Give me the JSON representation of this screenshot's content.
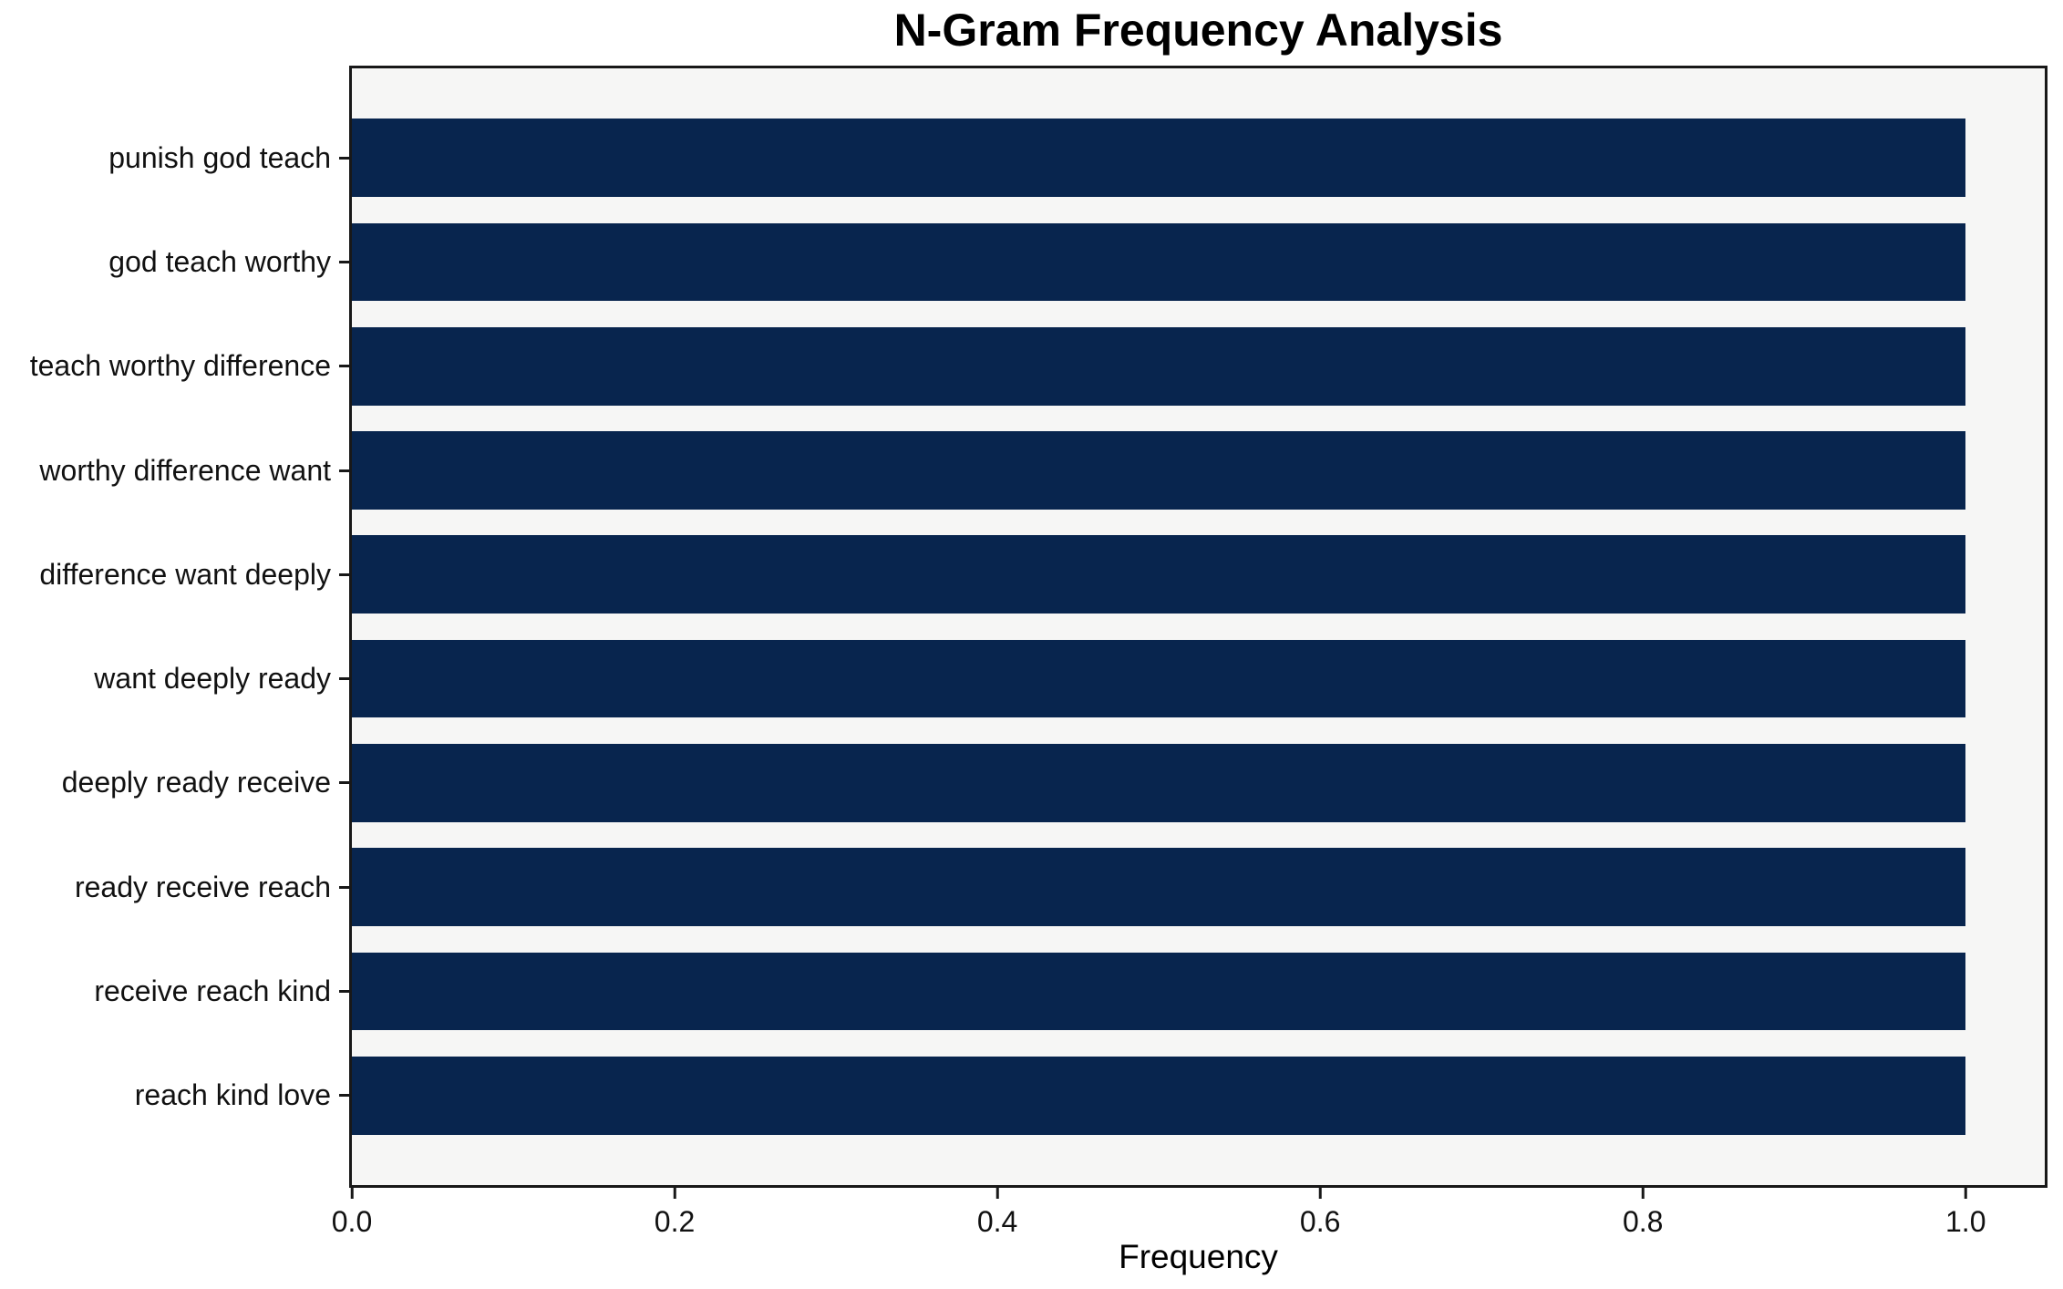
{
  "chart_data": {
    "type": "bar",
    "orientation": "horizontal",
    "title": "N-Gram Frequency Analysis",
    "xlabel": "Frequency",
    "ylabel": "",
    "categories": [
      "punish god teach",
      "god teach worthy",
      "teach worthy difference",
      "worthy difference want",
      "difference want deeply",
      "want deeply ready",
      "deeply ready receive",
      "ready receive reach",
      "receive reach kind",
      "reach kind love"
    ],
    "values": [
      1.0,
      1.0,
      1.0,
      1.0,
      1.0,
      1.0,
      1.0,
      1.0,
      1.0,
      1.0
    ],
    "x_ticks": [
      0.0,
      0.2,
      0.4,
      0.6,
      0.8,
      1.0
    ],
    "x_tick_labels": [
      "0.0",
      "0.2",
      "0.4",
      "0.6",
      "0.8",
      "1.0"
    ],
    "xlim": [
      0,
      1.049
    ],
    "grid": false,
    "legend": "none",
    "colors": {
      "bar": "#08254e",
      "plot_background": "#f6f6f5",
      "figure_background": "#ffffff",
      "spine": "#181818"
    }
  }
}
